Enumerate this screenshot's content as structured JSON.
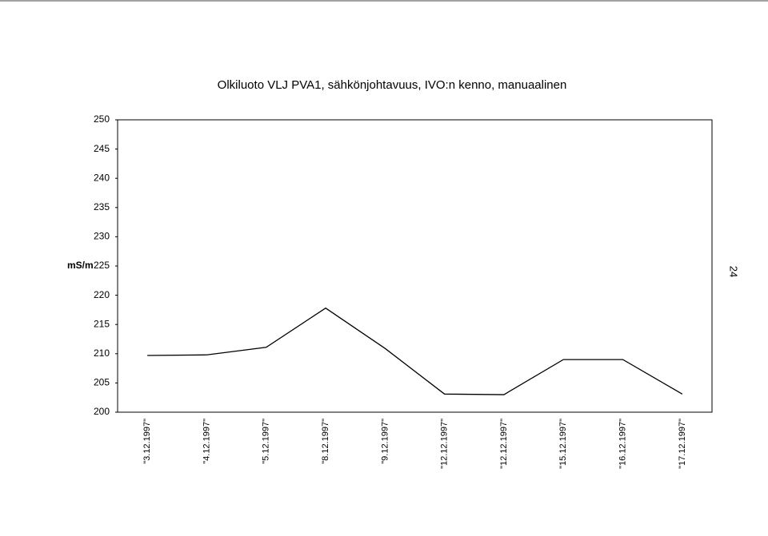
{
  "chart_data": {
    "type": "line",
    "title": "Olkiluoto VLJ PVA1, sähkönjohtavuus, IVO:n kenno, manuaalinen",
    "y_label": "mS/m",
    "categories": [
      "\"3.12.1997\"",
      "\"4.12.1997\"",
      "\"5.12.1997\"",
      "\"8.12.1997\"",
      "\"9.12.1997\"",
      "\"12.12.1997\"",
      "\"12.12.1997\"",
      "\"15.12.1997\"",
      "\"16.12.1997\"",
      "\"17.12.1997\""
    ],
    "series": [
      {
        "name": "mS/m",
        "color": "#000000",
        "values": [
          209.7,
          209.8,
          211.1,
          217.8,
          210.9,
          203.1,
          203.0,
          209.0,
          209.0,
          203.1
        ]
      }
    ],
    "ylim": [
      200,
      250
    ],
    "yticks": [
      200,
      205,
      210,
      215,
      220,
      225,
      230,
      235,
      240,
      245,
      250
    ],
    "grid": false
  },
  "page": {
    "number": "24"
  }
}
